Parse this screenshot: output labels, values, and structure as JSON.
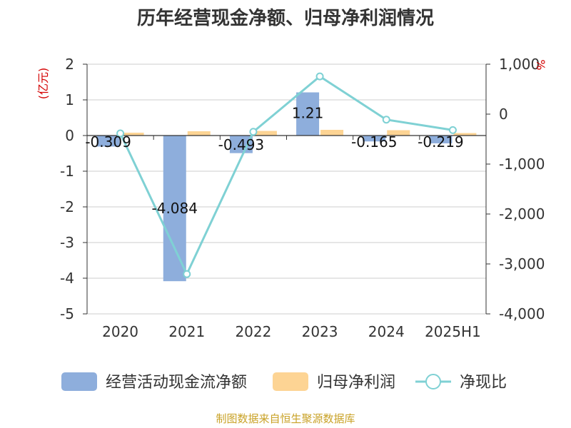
{
  "chart_data": {
    "type": "bar",
    "title": "历年经营现金净额、归母净利润情况",
    "categories": [
      "2020",
      "2021",
      "2022",
      "2023",
      "2024",
      "2025H1"
    ],
    "y_left": {
      "unit": "(亿元)",
      "min": -5,
      "max": 2,
      "ticks": [
        2,
        1,
        0,
        -1,
        -2,
        -3,
        -4,
        -5
      ]
    },
    "y_right": {
      "unit": "%",
      "min": -4000,
      "max": 1000,
      "ticks": [
        1000,
        0,
        -1000,
        -2000,
        -3000,
        -4000
      ],
      "tick_labels": [
        "1,000",
        "0",
        "-1,000",
        "-2,000",
        "-3,000",
        "-4,000"
      ]
    },
    "grid": true,
    "legend_position": "bottom",
    "series": [
      {
        "name": "经营活动现金流净额",
        "type": "bar",
        "axis": "left",
        "color": "#8eaedc",
        "values": [
          -0.309,
          -4.084,
          -0.493,
          1.21,
          -0.165,
          -0.219
        ],
        "labels": [
          "-0.309",
          "-4.084",
          "-0.493",
          "1.21",
          "-0.165",
          "-0.219"
        ]
      },
      {
        "name": "归母净利润",
        "type": "bar",
        "axis": "left",
        "color": "#fdd494",
        "values": [
          0.08,
          0.12,
          0.13,
          0.16,
          0.15,
          0.07
        ]
      },
      {
        "name": "净现比",
        "type": "line",
        "axis": "right",
        "color": "#7fd1d4",
        "values": [
          -386,
          -3203,
          -354,
          756,
          -110,
          -320
        ]
      }
    ],
    "source": "制图数据来自恒生聚源数据库"
  }
}
